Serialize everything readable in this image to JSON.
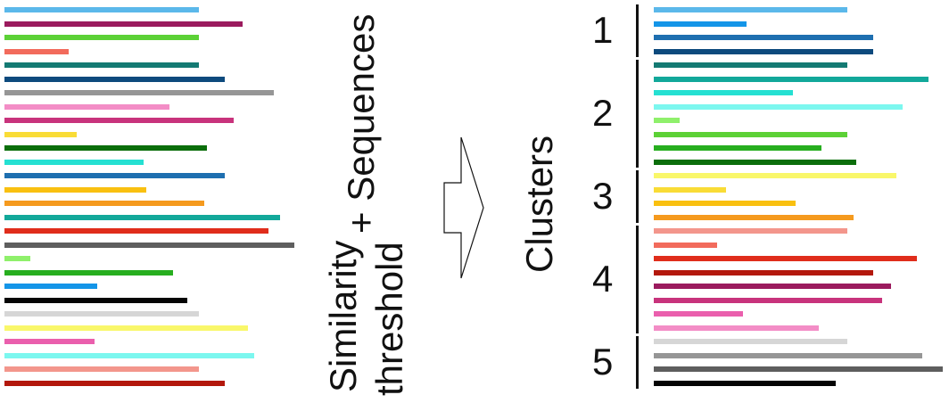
{
  "input": {
    "label_line1": "Similarity",
    "label_line2": "threshold",
    "label_plus": "+ Sequences",
    "sequences": [
      {
        "color": "#5bb8ea",
        "length": 0.67
      },
      {
        "color": "#9b1b5e",
        "length": 0.82
      },
      {
        "color": "#5cd136",
        "length": 0.67
      },
      {
        "color": "#f26b5c",
        "length": 0.22
      },
      {
        "color": "#147a73",
        "length": 0.67
      },
      {
        "color": "#0d4a7d",
        "length": 0.76
      },
      {
        "color": "#969696",
        "length": 0.93
      },
      {
        "color": "#f38dc6",
        "length": 0.57
      },
      {
        "color": "#c8337c",
        "length": 0.79
      },
      {
        "color": "#f9dc36",
        "length": 0.25
      },
      {
        "color": "#0b6e0b",
        "length": 0.7
      },
      {
        "color": "#25e0d2",
        "length": 0.48
      },
      {
        "color": "#1e6fb0",
        "length": 0.76
      },
      {
        "color": "#f9c010",
        "length": 0.49
      },
      {
        "color": "#f59a1e",
        "length": 0.69
      },
      {
        "color": "#12a89a",
        "length": 0.95
      },
      {
        "color": "#e02d1b",
        "length": 0.91
      },
      {
        "color": "#5e5e5e",
        "length": 1.0
      },
      {
        "color": "#8ff06b",
        "length": 0.09
      },
      {
        "color": "#27ae1f",
        "length": 0.58
      },
      {
        "color": "#1495e8",
        "length": 0.32
      },
      {
        "color": "#050505",
        "length": 0.63
      },
      {
        "color": "#d6d6d6",
        "length": 0.67
      },
      {
        "color": "#f9f76a",
        "length": 0.84
      },
      {
        "color": "#ea5fad",
        "length": 0.31
      },
      {
        "color": "#7cf7ef",
        "length": 0.86
      },
      {
        "color": "#f3968c",
        "length": 0.67
      },
      {
        "color": "#b3180c",
        "length": 0.76
      }
    ]
  },
  "arrow_icon": "right-arrow",
  "output": {
    "label": "Clusters",
    "clusters": [
      {
        "number": "1",
        "sequences": [
          {
            "color": "#5bb8ea",
            "length": 0.67
          },
          {
            "color": "#1495e8",
            "length": 0.32
          },
          {
            "color": "#1e6fb0",
            "length": 0.76
          },
          {
            "color": "#0d4a7d",
            "length": 0.76
          }
        ]
      },
      {
        "number": "2",
        "sequences": [
          {
            "color": "#147a73",
            "length": 0.67
          },
          {
            "color": "#12a89a",
            "length": 0.95
          },
          {
            "color": "#25e0d2",
            "length": 0.48
          },
          {
            "color": "#7cf7ef",
            "length": 0.86
          },
          {
            "color": "#8ff06b",
            "length": 0.09
          },
          {
            "color": "#5cd136",
            "length": 0.67
          },
          {
            "color": "#27ae1f",
            "length": 0.58
          },
          {
            "color": "#0b6e0b",
            "length": 0.7
          }
        ]
      },
      {
        "number": "3",
        "sequences": [
          {
            "color": "#f9f76a",
            "length": 0.84
          },
          {
            "color": "#f9dc36",
            "length": 0.25
          },
          {
            "color": "#f9c010",
            "length": 0.49
          },
          {
            "color": "#f59a1e",
            "length": 0.69
          }
        ]
      },
      {
        "number": "4",
        "sequences": [
          {
            "color": "#f3968c",
            "length": 0.67
          },
          {
            "color": "#f26b5c",
            "length": 0.22
          },
          {
            "color": "#e02d1b",
            "length": 0.91
          },
          {
            "color": "#b3180c",
            "length": 0.76
          },
          {
            "color": "#9b1b5e",
            "length": 0.82
          },
          {
            "color": "#c8337c",
            "length": 0.79
          },
          {
            "color": "#ea5fad",
            "length": 0.31
          },
          {
            "color": "#f38dc6",
            "length": 0.57
          }
        ]
      },
      {
        "number": "5",
        "sequences": [
          {
            "color": "#d6d6d6",
            "length": 0.67
          },
          {
            "color": "#969696",
            "length": 0.93
          },
          {
            "color": "#5e5e5e",
            "length": 1.0
          },
          {
            "color": "#050505",
            "length": 0.63
          }
        ]
      }
    ]
  }
}
